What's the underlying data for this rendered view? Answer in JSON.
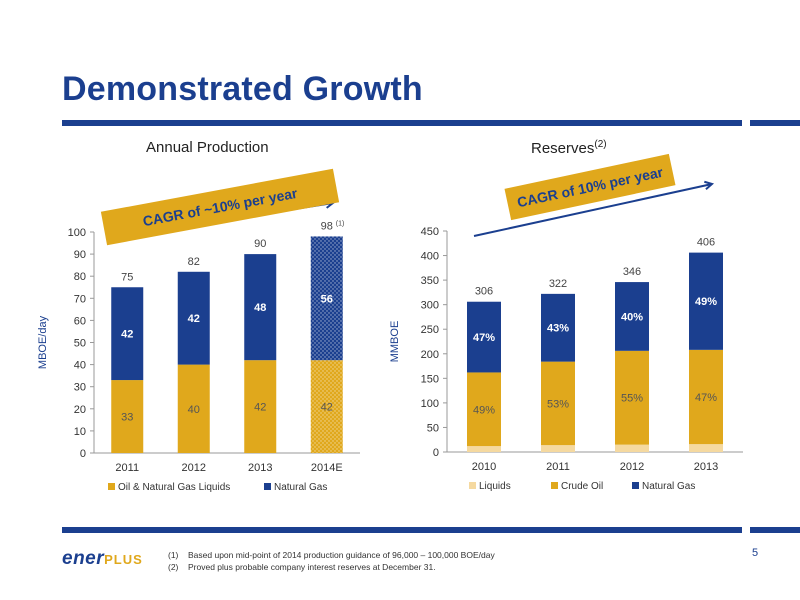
{
  "slide": {
    "title": "Demonstrated Growth",
    "page_number": "5",
    "logo_text_main": "ener",
    "logo_text_plus": "PLUS",
    "footnotes": [
      {
        "num": "(1)",
        "text": "Based upon mid-point of 2014 production guidance of 96,000 – 100,000 BOE/day"
      },
      {
        "num": "(2)",
        "text": "Proved plus probable company interest reserves at December  31."
      }
    ],
    "colors": {
      "brand_blue": "#1b3f8f",
      "gold": "#e0a81c",
      "light_gold": "#f5d9a0"
    }
  },
  "chart_data": [
    {
      "type": "bar",
      "stacked": true,
      "title": "Annual Production",
      "ylabel": "MBOE/day",
      "ylim": [
        0,
        100
      ],
      "yticks": [
        0,
        10,
        20,
        30,
        40,
        50,
        60,
        70,
        80,
        90,
        100
      ],
      "categories": [
        "2011",
        "2012",
        "2013",
        "2014E"
      ],
      "series": [
        {
          "name": "Oil & Natural Gas Liquids",
          "values": [
            33,
            40,
            42,
            42
          ],
          "labels": [
            "33",
            "40",
            "42",
            "42"
          ],
          "color": "#e0a81c"
        },
        {
          "name": "Natural Gas",
          "values": [
            42,
            42,
            48,
            56
          ],
          "labels": [
            "42",
            "42",
            "48",
            "56"
          ],
          "color": "#1b3f8f"
        }
      ],
      "totals": [
        75,
        82,
        90,
        98
      ],
      "total_labels": [
        "75",
        "82",
        "90",
        "98"
      ],
      "total_footnote": [
        null,
        null,
        null,
        "(1)"
      ],
      "estimate_category": "2014E",
      "grid": true,
      "legend_position": "bottom",
      "callout": "CAGR of ~10% per year"
    },
    {
      "type": "bar",
      "stacked": true,
      "title": "Reserves",
      "title_footnote": "(2)",
      "ylabel": "MMBOE",
      "ylim": [
        0,
        450
      ],
      "yticks": [
        0,
        50,
        100,
        150,
        200,
        250,
        300,
        350,
        400,
        450
      ],
      "categories": [
        "2010",
        "2011",
        "2012",
        "2013"
      ],
      "series": [
        {
          "name": "Liquids",
          "values": [
            12,
            14,
            15,
            16
          ],
          "color": "#f5d9a0"
        },
        {
          "name": "Crude Oil",
          "values": [
            150,
            170,
            191,
            192
          ],
          "labels": [
            "49%",
            "53%",
            "55%",
            "47%"
          ],
          "color": "#e0a81c"
        },
        {
          "name": "Natural Gas",
          "values": [
            144,
            138,
            140,
            198
          ],
          "labels": [
            "47%",
            "43%",
            "40%",
            "49%"
          ],
          "color": "#1b3f8f"
        }
      ],
      "totals": [
        306,
        322,
        346,
        406
      ],
      "total_labels": [
        "306",
        "322",
        "346",
        "406"
      ],
      "grid": true,
      "legend_position": "bottom",
      "callout": "CAGR of 10% per year"
    }
  ]
}
